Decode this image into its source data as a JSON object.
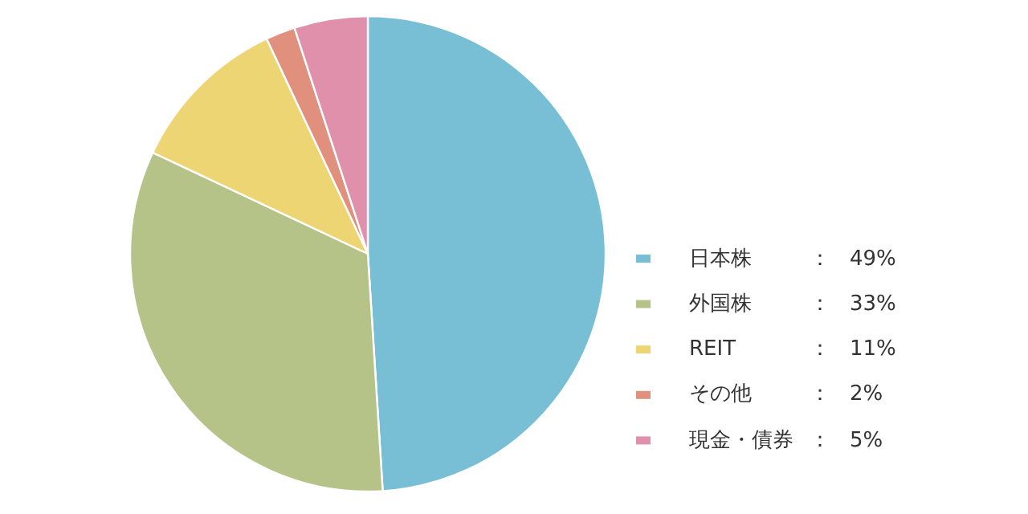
{
  "chart_data": {
    "type": "pie",
    "categories": [
      "日本株",
      "外国株",
      "REIT",
      "その他",
      "現金・債券"
    ],
    "values": [
      49,
      33,
      11,
      2,
      5
    ],
    "colors": [
      "#78bfd6",
      "#b5c388",
      "#edd573",
      "#e0907c",
      "#e190ab"
    ],
    "value_labels": [
      "49%",
      "33%",
      "11%",
      "2%",
      "5%"
    ],
    "annotations": [
      "：",
      "：",
      "：",
      "：",
      "："
    ],
    "legend": "right"
  }
}
